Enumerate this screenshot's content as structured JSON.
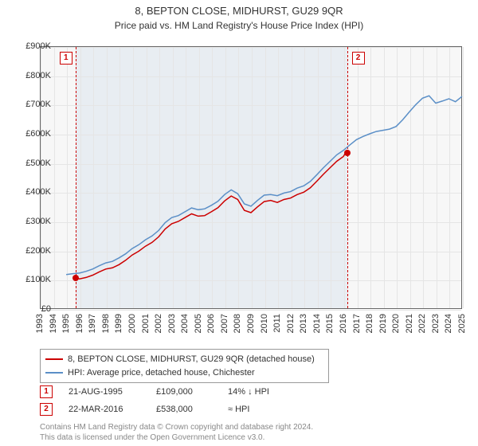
{
  "title_line1": "8, BEPTON CLOSE, MIDHURST, GU29 9QR",
  "title_line2": "Price paid vs. HM Land Registry's House Price Index (HPI)",
  "chart": {
    "type": "line",
    "background_color": "#f7f7f7",
    "shade_color": "#e8edf2",
    "grid_color": "#e5e5e5",
    "border_color": "#666666",
    "x_min_year": 1993,
    "x_max_year": 2025,
    "x_tick_step": 1,
    "y_min": 0,
    "y_max": 900,
    "y_tick_step": 100,
    "y_tick_labels": [
      "£0",
      "£100K",
      "£200K",
      "£300K",
      "£400K",
      "£500K",
      "£600K",
      "£700K",
      "£800K",
      "£900K"
    ],
    "x_tick_labels": [
      "1993",
      "1994",
      "1995",
      "1996",
      "1997",
      "1998",
      "1999",
      "2000",
      "2001",
      "2002",
      "2003",
      "2004",
      "2005",
      "2006",
      "2007",
      "2008",
      "2009",
      "2010",
      "2011",
      "2012",
      "2013",
      "2014",
      "2015",
      "2016",
      "2017",
      "2018",
      "2019",
      "2020",
      "2021",
      "2022",
      "2023",
      "2024",
      "2025"
    ],
    "shade_from_year": 1995.64,
    "shade_to_year": 2016.22,
    "marker_dash_color": "#cc0000",
    "marker_box_border": "#cc0000",
    "marker_box_text_color": "#cc0000",
    "dot_color": "#cc0000",
    "series": [
      {
        "name": "property",
        "color": "#cc0000",
        "width": 1.5,
        "points": [
          [
            1995.64,
            109
          ],
          [
            1996,
            103
          ],
          [
            1996.5,
            108
          ],
          [
            1997,
            116
          ],
          [
            1997.5,
            127
          ],
          [
            1998,
            137
          ],
          [
            1998.5,
            141
          ],
          [
            1999,
            152
          ],
          [
            1999.5,
            167
          ],
          [
            2000,
            185
          ],
          [
            2000.5,
            198
          ],
          [
            2001,
            215
          ],
          [
            2001.5,
            228
          ],
          [
            2002,
            247
          ],
          [
            2002.5,
            274
          ],
          [
            2003,
            292
          ],
          [
            2003.5,
            300
          ],
          [
            2004,
            313
          ],
          [
            2004.5,
            326
          ],
          [
            2005,
            318
          ],
          [
            2005.5,
            320
          ],
          [
            2006,
            333
          ],
          [
            2006.5,
            347
          ],
          [
            2007,
            370
          ],
          [
            2007.5,
            387
          ],
          [
            2008,
            375
          ],
          [
            2008.5,
            338
          ],
          [
            2009,
            330
          ],
          [
            2009.5,
            350
          ],
          [
            2010,
            368
          ],
          [
            2010.5,
            372
          ],
          [
            2011,
            365
          ],
          [
            2011.5,
            375
          ],
          [
            2012,
            380
          ],
          [
            2012.5,
            392
          ],
          [
            2013,
            400
          ],
          [
            2013.5,
            415
          ],
          [
            2014,
            438
          ],
          [
            2014.5,
            462
          ],
          [
            2015,
            484
          ],
          [
            2015.5,
            506
          ],
          [
            2016,
            522
          ],
          [
            2016.22,
            538
          ]
        ]
      },
      {
        "name": "hpi",
        "color": "#5b8fc7",
        "width": 1.5,
        "points": [
          [
            1995,
            118
          ],
          [
            1995.5,
            121
          ],
          [
            1996,
            123
          ],
          [
            1996.5,
            129
          ],
          [
            1997,
            137
          ],
          [
            1997.5,
            148
          ],
          [
            1998,
            158
          ],
          [
            1998.5,
            163
          ],
          [
            1999,
            175
          ],
          [
            1999.5,
            189
          ],
          [
            2000,
            207
          ],
          [
            2000.5,
            220
          ],
          [
            2001,
            237
          ],
          [
            2001.5,
            250
          ],
          [
            2002,
            269
          ],
          [
            2002.5,
            296
          ],
          [
            2003,
            313
          ],
          [
            2003.5,
            320
          ],
          [
            2004,
            333
          ],
          [
            2004.5,
            346
          ],
          [
            2005,
            340
          ],
          [
            2005.5,
            343
          ],
          [
            2006,
            355
          ],
          [
            2006.5,
            369
          ],
          [
            2007,
            392
          ],
          [
            2007.5,
            408
          ],
          [
            2008,
            395
          ],
          [
            2008.5,
            360
          ],
          [
            2009,
            352
          ],
          [
            2009.5,
            372
          ],
          [
            2010,
            390
          ],
          [
            2010.5,
            392
          ],
          [
            2011,
            388
          ],
          [
            2011.5,
            397
          ],
          [
            2012,
            402
          ],
          [
            2012.5,
            414
          ],
          [
            2013,
            422
          ],
          [
            2013.5,
            437
          ],
          [
            2014,
            460
          ],
          [
            2014.5,
            484
          ],
          [
            2015,
            506
          ],
          [
            2015.5,
            528
          ],
          [
            2016,
            543
          ],
          [
            2016.5,
            562
          ],
          [
            2017,
            580
          ],
          [
            2017.5,
            591
          ],
          [
            2018,
            600
          ],
          [
            2018.5,
            608
          ],
          [
            2019,
            612
          ],
          [
            2019.5,
            616
          ],
          [
            2020,
            625
          ],
          [
            2020.5,
            648
          ],
          [
            2021,
            675
          ],
          [
            2021.5,
            700
          ],
          [
            2022,
            722
          ],
          [
            2022.5,
            730
          ],
          [
            2023,
            705
          ],
          [
            2023.5,
            712
          ],
          [
            2024,
            720
          ],
          [
            2024.5,
            710
          ],
          [
            2025,
            728
          ]
        ]
      }
    ],
    "markers": [
      {
        "num": "1",
        "year": 1995.64,
        "value": 109
      },
      {
        "num": "2",
        "year": 2016.22,
        "value": 538
      }
    ]
  },
  "legend": {
    "series1_label": "8, BEPTON CLOSE, MIDHURST, GU29 9QR (detached house)",
    "series1_color": "#cc0000",
    "series2_label": "HPI: Average price, detached house, Chichester",
    "series2_color": "#5b8fc7"
  },
  "annotations": [
    {
      "num": "1",
      "date": "21-AUG-1995",
      "price": "£109,000",
      "rel": "14% ↓ HPI"
    },
    {
      "num": "2",
      "date": "22-MAR-2016",
      "price": "£538,000",
      "rel": "≈ HPI"
    }
  ],
  "footer_line1": "Contains HM Land Registry data © Crown copyright and database right 2024.",
  "footer_line2": "This data is licensed under the Open Government Licence v3.0."
}
